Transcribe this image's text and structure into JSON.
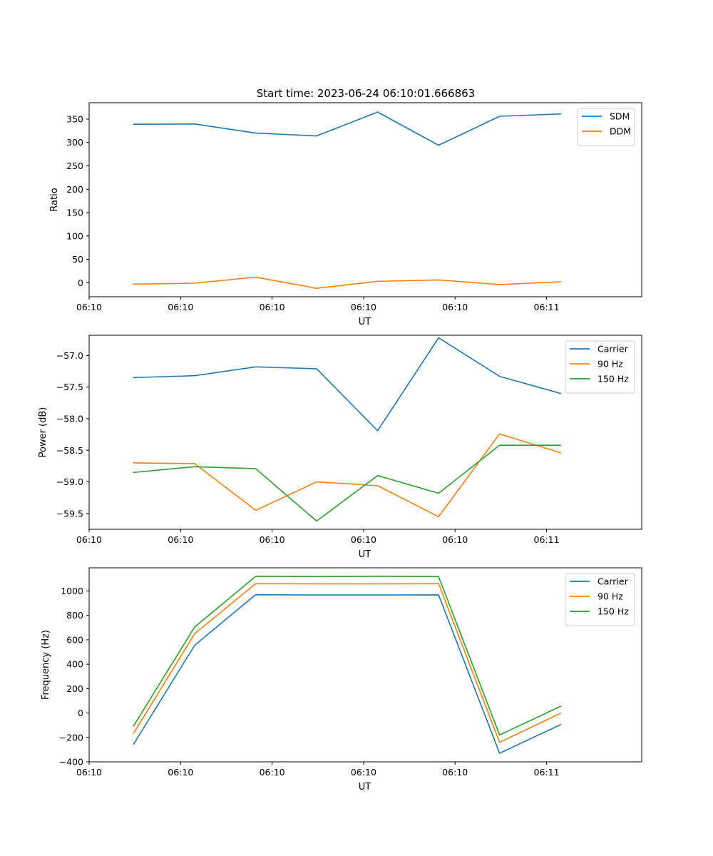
{
  "figure": {
    "title": "Start time: 2023-06-24 06:10:01.666863"
  },
  "chart_data": [
    {
      "type": "line",
      "title": "Start time: 2023-06-24 06:10:01.666863",
      "xlabel": "UT",
      "ylabel": "Ratio",
      "x": [
        "06:10",
        "06:10",
        "06:10",
        "06:10",
        "06:10",
        "06:10",
        "06:10",
        "06:10"
      ],
      "x_index": [
        0,
        1,
        2,
        3,
        4,
        5,
        6,
        7
      ],
      "xlim": [
        -0.73,
        8.33
      ],
      "xticks": [
        -0.73,
        0.77,
        2.27,
        3.77,
        5.27,
        6.77
      ],
      "xtick_labels": [
        "06:10",
        "06:10",
        "06:10",
        "06:10",
        "06:10",
        "06:11"
      ],
      "ylim": [
        -30,
        385
      ],
      "yticks": [
        0,
        50,
        100,
        150,
        200,
        250,
        300,
        350
      ],
      "ytick_labels": [
        "0",
        "50",
        "100",
        "150",
        "200",
        "250",
        "300",
        "350"
      ],
      "legend_position": "top-right",
      "series": [
        {
          "name": "SDM",
          "color": "#1f77b4",
          "values": [
            339,
            339.5,
            320,
            314,
            365,
            294,
            356,
            361
          ]
        },
        {
          "name": "DDM",
          "color": "#ff7f0e",
          "values": [
            -3,
            -1,
            12,
            -12,
            3,
            6,
            -4,
            2
          ]
        }
      ]
    },
    {
      "type": "line",
      "xlabel": "UT",
      "ylabel": "Power (dB)",
      "x": [
        "06:10",
        "06:10",
        "06:10",
        "06:10",
        "06:10",
        "06:10",
        "06:10",
        "06:10"
      ],
      "x_index": [
        0,
        1,
        2,
        3,
        4,
        5,
        6,
        7
      ],
      "xlim": [
        -0.73,
        8.33
      ],
      "xticks": [
        -0.73,
        0.77,
        2.27,
        3.77,
        5.27,
        6.77
      ],
      "xtick_labels": [
        "06:10",
        "06:10",
        "06:10",
        "06:10",
        "06:10",
        "06:11"
      ],
      "ylim": [
        -59.75,
        -56.68
      ],
      "yticks": [
        -59.5,
        -59.0,
        -58.5,
        -58.0,
        -57.5,
        -57.0
      ],
      "ytick_labels": [
        "−59.5",
        "−59.0",
        "−58.5",
        "−58.0",
        "−57.5",
        "−57.0"
      ],
      "legend_position": "top-right",
      "series": [
        {
          "name": "Carrier",
          "color": "#1f77b4",
          "values": [
            -57.35,
            -57.32,
            -57.18,
            -57.21,
            -58.19,
            -56.72,
            -57.33,
            -57.6
          ]
        },
        {
          "name": "90 Hz",
          "color": "#ff7f0e",
          "values": [
            -58.7,
            -58.71,
            -59.45,
            -59.0,
            -59.06,
            -59.55,
            -58.24,
            -58.54
          ]
        },
        {
          "name": "150 Hz",
          "color": "#2ca02c",
          "values": [
            -58.85,
            -58.76,
            -58.79,
            -59.62,
            -58.9,
            -59.18,
            -58.42,
            -58.42
          ]
        }
      ]
    },
    {
      "type": "line",
      "xlabel": "UT",
      "ylabel": "Frequency (Hz)",
      "x": [
        "06:10",
        "06:10",
        "06:10",
        "06:10",
        "06:10",
        "06:10",
        "06:10",
        "06:10"
      ],
      "x_index": [
        0,
        1,
        2,
        3,
        4,
        5,
        6,
        7
      ],
      "xlim": [
        -0.73,
        8.33
      ],
      "xticks": [
        -0.73,
        0.77,
        2.27,
        3.77,
        5.27,
        6.77
      ],
      "xtick_labels": [
        "06:10",
        "06:10",
        "06:10",
        "06:10",
        "06:10",
        "06:11"
      ],
      "ylim": [
        -400,
        1190
      ],
      "yticks": [
        -400,
        -200,
        0,
        200,
        400,
        600,
        800,
        1000
      ],
      "ytick_labels": [
        "−400",
        "−200",
        "0",
        "200",
        "400",
        "600",
        "800",
        "1000"
      ],
      "legend_position": "top-right",
      "series": [
        {
          "name": "Carrier",
          "color": "#1f77b4",
          "values": [
            -255,
            555,
            970,
            967,
            967,
            968,
            -330,
            -95
          ]
        },
        {
          "name": "90 Hz",
          "color": "#ff7f0e",
          "values": [
            -165,
            650,
            1060,
            1058,
            1058,
            1060,
            -240,
            -2
          ]
        },
        {
          "name": "150 Hz",
          "color": "#2ca02c",
          "values": [
            -105,
            705,
            1120,
            1118,
            1120,
            1118,
            -180,
            55
          ]
        }
      ]
    }
  ]
}
